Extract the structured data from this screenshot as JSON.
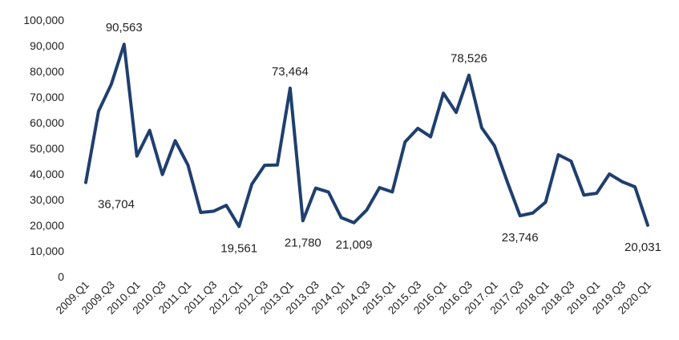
{
  "chart_data": {
    "type": "line",
    "title": "",
    "xlabel": "",
    "ylabel": "",
    "ylim": [
      0,
      100000
    ],
    "grid": false,
    "legend": "none",
    "line_color": "#1f3f6e",
    "label_color": "#222222",
    "yticks": [
      "0",
      "10,000",
      "20,000",
      "30,000",
      "40,000",
      "50,000",
      "60,000",
      "70,000",
      "80,000",
      "90,000",
      "100,000"
    ],
    "x": [
      "2009.Q1",
      "2009.Q2",
      "2009.Q3",
      "2009.Q4",
      "2010.Q1",
      "2010.Q2",
      "2010.Q3",
      "2010.Q4",
      "2011.Q1",
      "2011.Q2",
      "2011.Q3",
      "2011.Q4",
      "2012.Q1",
      "2012.Q2",
      "2012.Q3",
      "2012.Q4",
      "2013.Q1",
      "2013.Q2",
      "2013.Q3",
      "2013.Q4",
      "2014.Q1",
      "2014.Q2",
      "2014.Q3",
      "2014.Q4",
      "2015.Q1",
      "2015.Q2",
      "2015.Q3",
      "2015.Q4",
      "2016.Q1",
      "2016.Q2",
      "2016.Q3",
      "2016.Q4",
      "2017.Q1",
      "2017.Q2",
      "2017.Q3",
      "2017.Q4",
      "2018.Q1",
      "2018.Q2",
      "2018.Q3",
      "2018.Q4",
      "2019.Q1",
      "2019.Q2",
      "2019.Q3",
      "2019.Q4",
      "2020.Q1"
    ],
    "xtick_labels": [
      "2009.Q1",
      "2009.Q3",
      "2010.Q1",
      "2010.Q3",
      "2011.Q1",
      "2011.Q3",
      "2012.Q1",
      "2012.Q3",
      "2013.Q1",
      "2013.Q3",
      "2014.Q1",
      "2014.Q3",
      "2015.Q1",
      "2015.Q3",
      "2016.Q1",
      "2016.Q3",
      "2017.Q1",
      "2017.Q3",
      "2018.Q1",
      "2018.Q3",
      "2019.Q1",
      "2019.Q3",
      "2020.Q1"
    ],
    "series": [
      {
        "name": "",
        "values": [
          36704,
          64500,
          75000,
          90563,
          47000,
          57000,
          39800,
          53000,
          43500,
          25000,
          25500,
          27800,
          19561,
          36000,
          43400,
          43500,
          73464,
          21780,
          34500,
          33000,
          23000,
          21009,
          26000,
          34700,
          33000,
          52500,
          57800,
          54500,
          71500,
          64000,
          78526,
          58000,
          51000,
          37000,
          23746,
          24800,
          29000,
          47500,
          45000,
          31800,
          32500,
          40000,
          37000,
          35000,
          20031
        ]
      }
    ],
    "annotations": [
      {
        "index": 0,
        "text": "36,704",
        "position": "below"
      },
      {
        "index": 3,
        "text": "90,563",
        "position": "above"
      },
      {
        "index": 12,
        "text": "19,561",
        "position": "below"
      },
      {
        "index": 16,
        "text": "73,464",
        "position": "above"
      },
      {
        "index": 17,
        "text": "21,780",
        "position": "below"
      },
      {
        "index": 21,
        "text": "21,009",
        "position": "below"
      },
      {
        "index": 30,
        "text": "78,526",
        "position": "above"
      },
      {
        "index": 34,
        "text": "23,746",
        "position": "below"
      },
      {
        "index": 44,
        "text": "20,031",
        "position": "below"
      }
    ]
  }
}
